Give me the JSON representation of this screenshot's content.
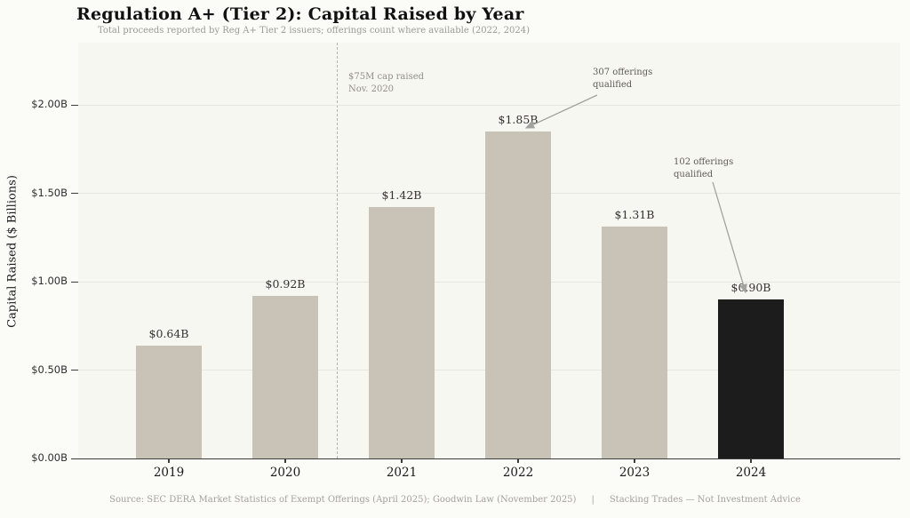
{
  "header": {
    "title": "Regulation A+ (Tier 2): Capital Raised by Year",
    "subtitle": "Total proceeds reported by Reg A+ Tier 2 issuers; offerings count where available (2022, 2024)"
  },
  "chart_data": {
    "type": "bar",
    "title": "Regulation A+ (Tier 2): Capital Raised by Year",
    "subtitle": "Total proceeds reported by Reg A+ Tier 2 issuers; offerings count where available (2022, 2024)",
    "categories": [
      "2019",
      "2020",
      "2021",
      "2022",
      "2023",
      "2024"
    ],
    "values": [
      0.64,
      0.92,
      1.42,
      1.85,
      1.31,
      0.9
    ],
    "value_labels": [
      "$0.64B",
      "$0.92B",
      "$1.42B",
      "$1.85B",
      "$1.31B",
      "$0.90B"
    ],
    "bar_colors": [
      "#c8c3b6",
      "#c8c3b6",
      "#c8c3b6",
      "#c8c3b6",
      "#c8c3b6",
      "#1c1c1c"
    ],
    "xlabel": "",
    "ylabel": "Capital Raised ($ Billions)",
    "ylim": [
      0,
      2.35
    ],
    "yticks": [
      {
        "value": 0.0,
        "label": "$0.00B"
      },
      {
        "value": 0.5,
        "label": "$0.50B"
      },
      {
        "value": 1.0,
        "label": "$1.00B"
      },
      {
        "value": 1.5,
        "label": "$1.50B"
      },
      {
        "value": 2.0,
        "label": "$2.00B"
      }
    ],
    "grid": "horizontal",
    "legend": null,
    "reference_line": {
      "orientation": "vertical",
      "style": "dashed",
      "between": [
        "2020",
        "2021"
      ]
    },
    "annotations": [
      {
        "text": "$75M cap raised\nNov. 2020",
        "style": "plain",
        "position": "right of dashed line"
      },
      {
        "text": "307 offerings\nqualified",
        "style": "arrow",
        "target_category": "2022"
      },
      {
        "text": "102 offerings\nqualified",
        "style": "arrow",
        "target_category": "2024"
      }
    ]
  },
  "footer": {
    "source": "Source: SEC DERA Market Statistics of Exempt Offerings (April 2025); Goodwin Law (November 2025)",
    "divider": "|",
    "brand": "Stacking Trades — Not Investment Advice"
  }
}
